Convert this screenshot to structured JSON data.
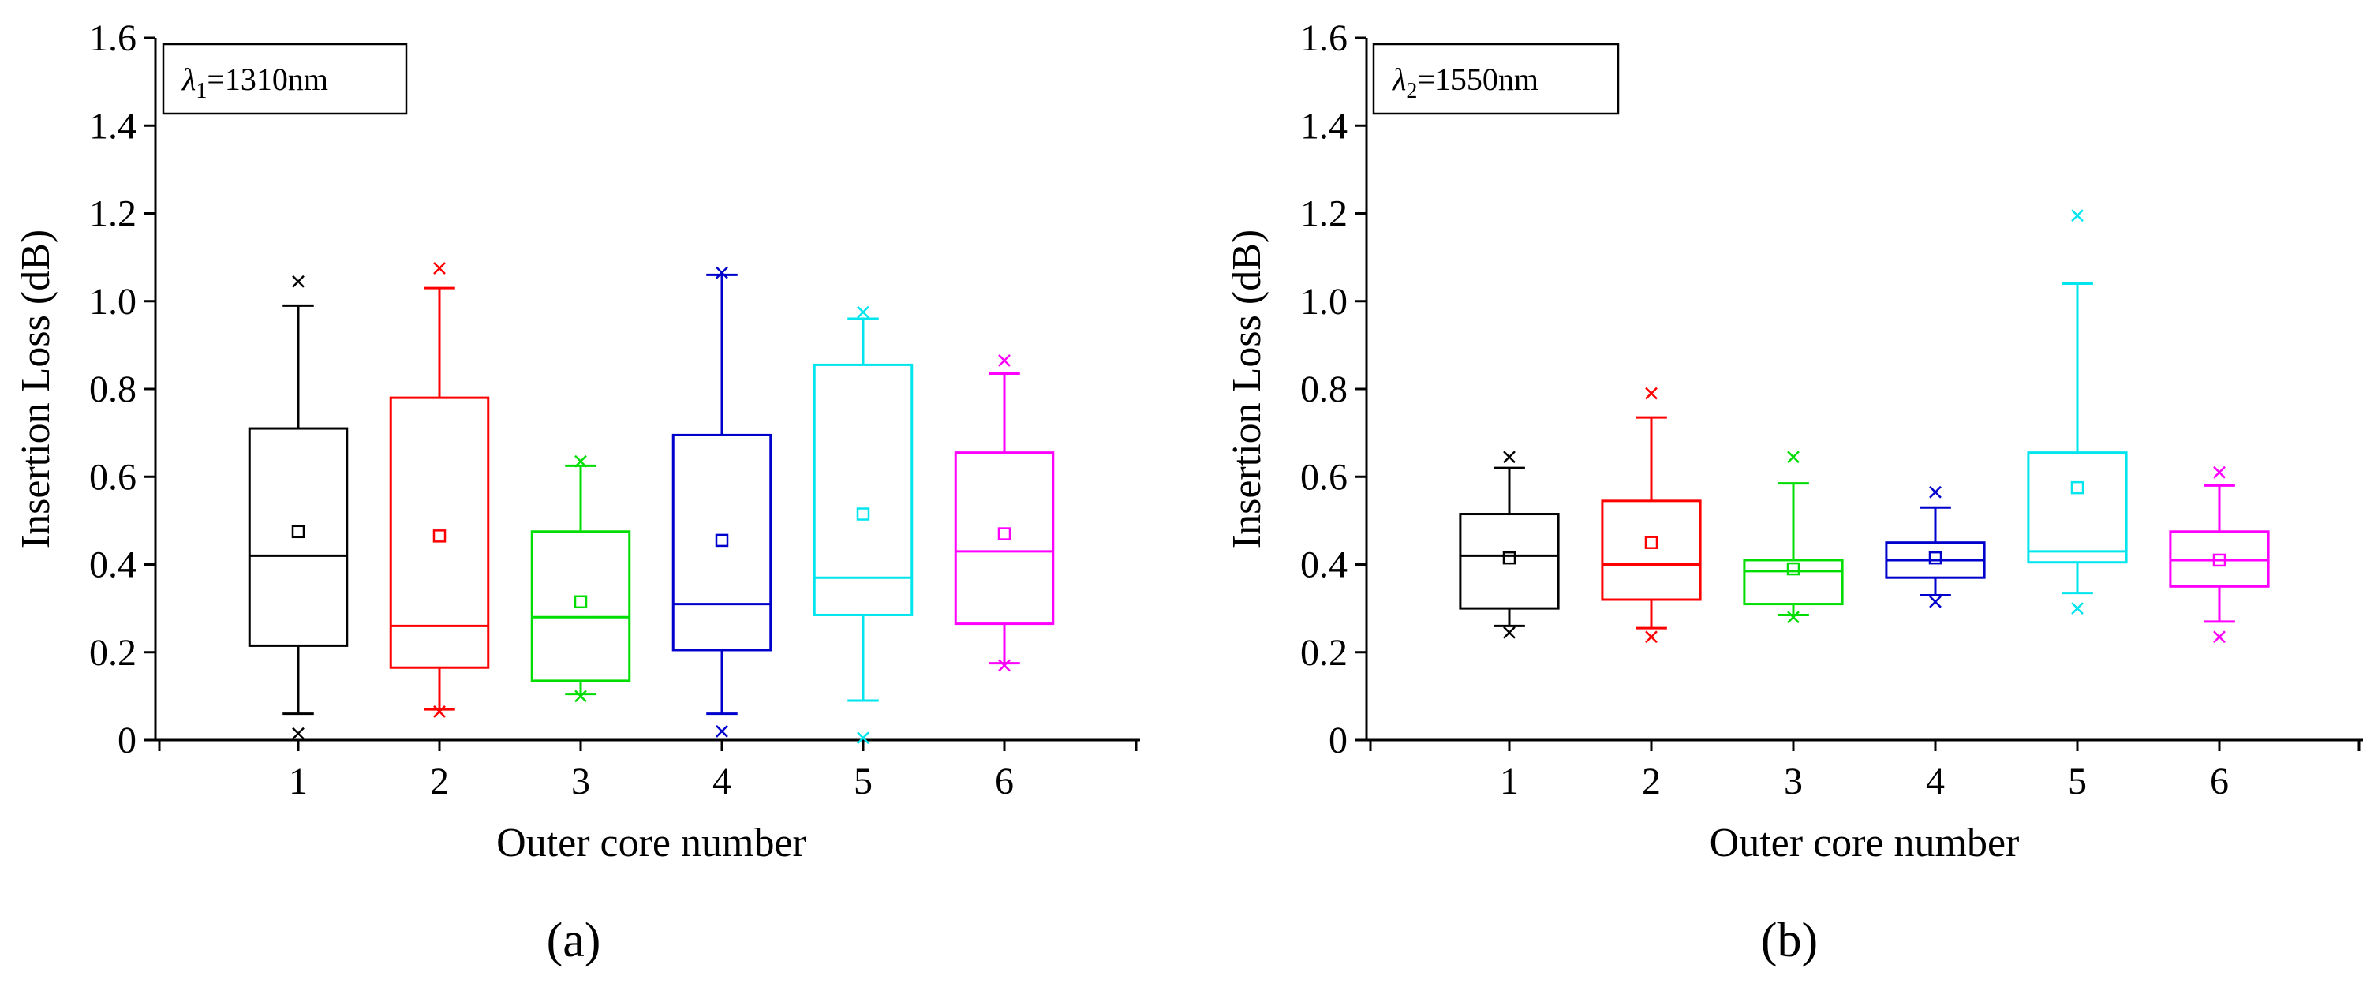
{
  "chart_data": [
    {
      "type": "box",
      "panel_label": "(a)",
      "legend": {
        "symbol": "λ",
        "subscript": "1",
        "text": "=1310nm",
        "position": "top-left"
      },
      "xlabel": "Outer core number",
      "ylabel": "Insertion Loss (dB)",
      "ylim": [
        0,
        1.6
      ],
      "yticks": [
        "0",
        "0.2",
        "0.4",
        "0.6",
        "0.8",
        "1.0",
        "1.2",
        "1.4",
        "1.6"
      ],
      "categories": [
        "1",
        "2",
        "3",
        "4",
        "5",
        "6"
      ],
      "boxes": [
        {
          "q1": 0.215,
          "median": 0.42,
          "q3": 0.71,
          "whisker_low": 0.06,
          "whisker_high": 0.99,
          "mean": 0.475,
          "min": 0.015,
          "max": 1.045,
          "color": "#000000"
        },
        {
          "q1": 0.165,
          "median": 0.26,
          "q3": 0.78,
          "whisker_low": 0.07,
          "whisker_high": 1.03,
          "mean": 0.465,
          "min": 0.065,
          "max": 1.075,
          "color": "#ff0000"
        },
        {
          "q1": 0.135,
          "median": 0.28,
          "q3": 0.475,
          "whisker_low": 0.105,
          "whisker_high": 0.625,
          "mean": 0.315,
          "min": 0.1,
          "max": 0.635,
          "color": "#00dd00"
        },
        {
          "q1": 0.205,
          "median": 0.31,
          "q3": 0.695,
          "whisker_low": 0.06,
          "whisker_high": 1.06,
          "mean": 0.455,
          "min": 0.02,
          "max": 1.065,
          "color": "#0000cc"
        },
        {
          "q1": 0.285,
          "median": 0.37,
          "q3": 0.855,
          "whisker_low": 0.09,
          "whisker_high": 0.96,
          "mean": 0.515,
          "min": 0.005,
          "max": 0.975,
          "color": "#00e5ee"
        },
        {
          "q1": 0.265,
          "median": 0.43,
          "q3": 0.655,
          "whisker_low": 0.175,
          "whisker_high": 0.835,
          "mean": 0.47,
          "min": 0.17,
          "max": 0.865,
          "color": "#ff00ff"
        }
      ]
    },
    {
      "type": "box",
      "panel_label": "(b)",
      "legend": {
        "symbol": "λ",
        "subscript": "2",
        "text": "=1550nm",
        "position": "top-left"
      },
      "xlabel": "Outer core number",
      "ylabel": "Insertion Loss (dB)",
      "ylim": [
        0,
        1.6
      ],
      "yticks": [
        "0",
        "0.2",
        "0.4",
        "0.6",
        "0.8",
        "1.0",
        "1.2",
        "1.4",
        "1.6"
      ],
      "categories": [
        "1",
        "2",
        "3",
        "4",
        "5",
        "6"
      ],
      "boxes": [
        {
          "q1": 0.3,
          "median": 0.42,
          "q3": 0.515,
          "whisker_low": 0.26,
          "whisker_high": 0.62,
          "mean": 0.415,
          "min": 0.245,
          "max": 0.645,
          "color": "#000000"
        },
        {
          "q1": 0.32,
          "median": 0.4,
          "q3": 0.545,
          "whisker_low": 0.255,
          "whisker_high": 0.735,
          "mean": 0.45,
          "min": 0.235,
          "max": 0.79,
          "color": "#ff0000"
        },
        {
          "q1": 0.31,
          "median": 0.385,
          "q3": 0.41,
          "whisker_low": 0.285,
          "whisker_high": 0.585,
          "mean": 0.39,
          "min": 0.28,
          "max": 0.645,
          "color": "#00dd00"
        },
        {
          "q1": 0.37,
          "median": 0.41,
          "q3": 0.45,
          "whisker_low": 0.33,
          "whisker_high": 0.53,
          "mean": 0.415,
          "min": 0.315,
          "max": 0.565,
          "color": "#0000cc"
        },
        {
          "q1": 0.405,
          "median": 0.43,
          "q3": 0.655,
          "whisker_low": 0.335,
          "whisker_high": 1.04,
          "mean": 0.575,
          "min": 0.3,
          "max": 1.195,
          "color": "#00e5ee"
        },
        {
          "q1": 0.35,
          "median": 0.41,
          "q3": 0.475,
          "whisker_low": 0.27,
          "whisker_high": 0.58,
          "mean": 0.41,
          "min": 0.235,
          "max": 0.61,
          "color": "#ff00ff"
        }
      ]
    }
  ]
}
